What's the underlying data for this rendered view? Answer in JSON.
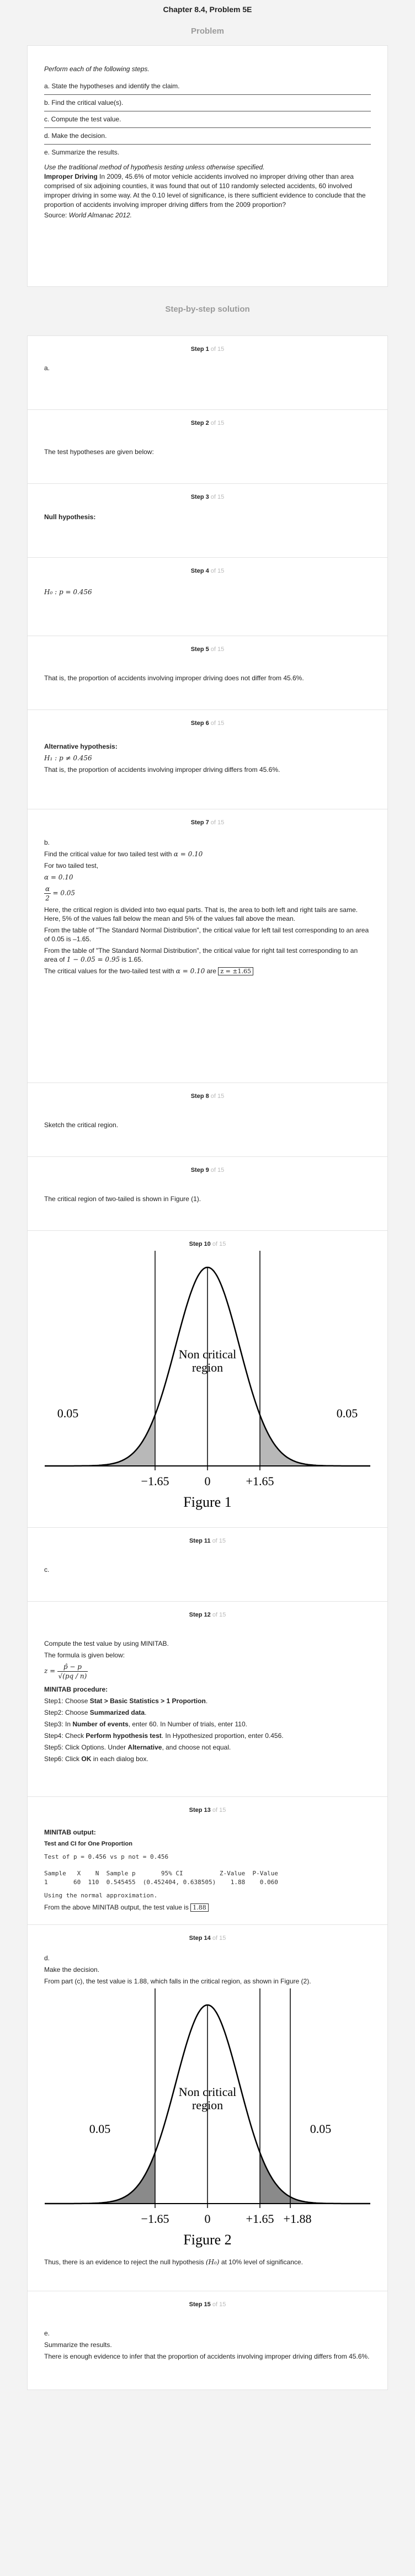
{
  "header": {
    "chapter_title": "Chapter 8.4, Problem 5E",
    "problem_heading": "Problem",
    "solution_heading": "Step-by-step solution"
  },
  "problem": {
    "intro": "Perform each of the following steps.",
    "parts": [
      "a. State the hypotheses and identify the claim.",
      "b. Find the critical value(s).",
      "c. Compute the test value.",
      "d. Make the decision.",
      "e. Summarize the results."
    ],
    "instruction": "Use the traditional method of hypothesis testing unless otherwise specified.",
    "title_bold": "Improper Driving",
    "body": " In 2009, 45.6% of motor vehicle accidents involved no improper driving other than area comprised of six adjoining counties, it was found that out of 110 randomly selected accidents, 60 involved improper driving in some way. At the 0.10 level of significance, is there sufficient evidence to conclude that the proportion of accidents involving improper driving differs from the 2009 proportion?",
    "source_label": "Source: ",
    "source_name": "World Almanac 2012."
  },
  "steps": {
    "of_text": "of 15",
    "s1": {
      "num": "Step 1",
      "text": "a."
    },
    "s2": {
      "num": "Step 2",
      "text": "The test hypotheses are given below:"
    },
    "s3": {
      "num": "Step 3",
      "text": "Null hypothesis:"
    },
    "s4": {
      "num": "Step 4",
      "formula": "H₀ : p = 0.456"
    },
    "s5": {
      "num": "Step 5",
      "text": "That is, the proportion of accidents involving improper driving does not differ from 45.6%."
    },
    "s6": {
      "num": "Step 6",
      "heading": "Alternative hypothesis:",
      "formula": "H₁ : p ≠ 0.456",
      "text": "That is, the proportion of accidents involving improper driving differs from 45.6%."
    },
    "s7": {
      "num": "Step 7",
      "part": "b.",
      "l1": "Find the critical value for two tailed test with",
      "l1_math": "α = 0.10",
      "l2": "For two tailed test,",
      "m1": "α = 0.10",
      "m2_num": "α",
      "m2_den": "2",
      "m2_val": "= 0.05",
      "l3": "Here, the critical region is divided into two equal parts. That is, the area to both left and right tails are same. Here, 5% of the values fall below the mean and 5% of the values fall above the mean.",
      "l4": "From the table of \"The Standard Normal Distribution\", the critical value for left tail test corresponding to an area of 0.05 is –1.65.",
      "l5": "From the table of \"The Standard Normal Distribution\", the critical value for right tail test corresponding to an area of",
      "l5_math": "1 − 0.05 = 0.95",
      "l5_end": " is 1.65.",
      "l6": "The critical values for the two-tailed test with",
      "l6_math": "α = 0.10",
      "l6_mid": " are ",
      "l6_box": "z = ±1.65"
    },
    "s8": {
      "num": "Step 8",
      "text": "Sketch the critical region."
    },
    "s9": {
      "num": "Step 9",
      "text": "The critical region of two-tailed is shown in Figure (1)."
    },
    "s10": {
      "num": "Step 10"
    },
    "s11": {
      "num": "Step 11",
      "text": "c."
    },
    "s12": {
      "num": "Step 12",
      "l1": "Compute the test value by using MINITAB.",
      "l2": "The formula is given below:",
      "f_lhs": "z =",
      "f_num": "p̂ − p",
      "f_den": "√(pq / n)",
      "proc": "MINITAB procedure:",
      "items": [
        {
          "label": "Step1:",
          "pre": " Choose ",
          "bold": "Stat > Basic Statistics > 1 Proportion",
          "post": "."
        },
        {
          "label": "Step2:",
          "pre": " Choose ",
          "bold": "Summarized data",
          "post": "."
        },
        {
          "label": "Step3:",
          "pre": " In ",
          "bold": "Number of events",
          "post": ", enter 60. In Number of trials, enter 110."
        },
        {
          "label": "Step4:",
          "pre": " Check ",
          "bold": "Perform hypothesis test",
          "post": ". In Hypothesized proportion, enter 0.456."
        },
        {
          "label": "Step5:",
          "pre": " Click Options. Under ",
          "bold": "Alternative",
          "post": ", and choose not equal."
        },
        {
          "label": "Step6:",
          "pre": " Click ",
          "bold": "OK",
          "post": " in each dialog box."
        }
      ]
    },
    "s13": {
      "num": "Step 13",
      "out": "MINITAB output:",
      "out_title": "Test and CI for One Proportion",
      "mono1": "Test of p = 0.456 vs p not = 0.456",
      "mono2": "Sample   X    N  Sample p       95% CI          Z-Value  P-Value",
      "mono3": "1       60  110  0.545455  (0.452404, 0.638505)    1.88    0.060",
      "mono4": "Using the normal approximation.",
      "l1": "From the above MINITAB output, the test value is",
      "box": "1.88"
    },
    "s14": {
      "num": "Step 14",
      "part": "d.",
      "l1": "Make the decision.",
      "l2": "From part (c), the test value is 1.88, which falls in the critical region, as shown in Figure (2).",
      "l3": "Thus, there is an evidence to reject the null hypothesis",
      "l3_math": "(H₀)",
      "l3_end": " at 10% level of significance."
    },
    "s15": {
      "num": "Step 15",
      "part": "e.",
      "l1": "Summarize the results.",
      "l2": "There is enough evidence to infer that the proportion of accidents involving improper driving differs from 45.6%."
    }
  },
  "figures": {
    "fig1": {
      "caption": "Figure 1",
      "region": [
        "Non critical",
        "region"
      ],
      "tail": "0.05",
      "ticks": [
        "−1.65",
        "0",
        "+1.65"
      ],
      "shade": "#b8b8b8"
    },
    "fig2": {
      "caption": "Figure 2",
      "region": [
        "Non critical",
        "region"
      ],
      "tail": "0.05",
      "ticks": [
        "−1.65",
        "0",
        "+1.65",
        "+1.88"
      ],
      "shade": "#8a8a8a"
    }
  }
}
